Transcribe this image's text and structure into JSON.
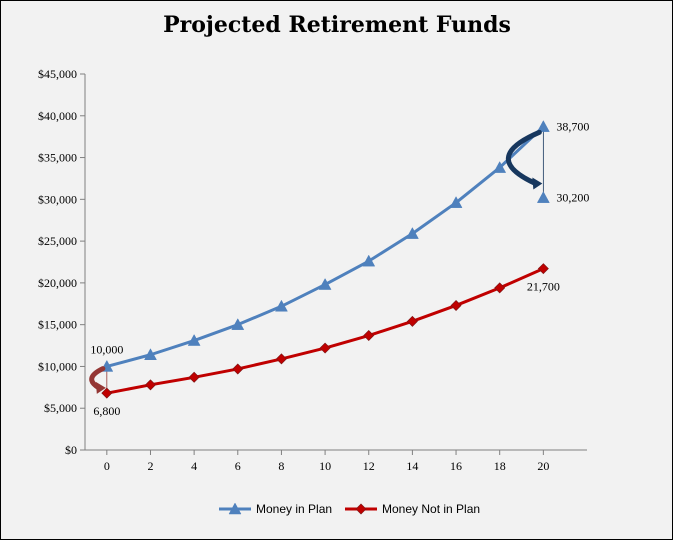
{
  "chart_data": {
    "type": "line",
    "title": "Projected Retirement Funds",
    "xlabel": "",
    "ylabel": "",
    "x": [
      0,
      2,
      4,
      6,
      8,
      10,
      12,
      14,
      16,
      18,
      20
    ],
    "xlim": [
      -1,
      22
    ],
    "ylim": [
      0,
      45000
    ],
    "x_ticks": [
      0,
      2,
      4,
      6,
      8,
      10,
      12,
      14,
      16,
      18,
      20
    ],
    "y_ticks": [
      0,
      5000,
      10000,
      15000,
      20000,
      25000,
      30000,
      35000,
      40000,
      45000
    ],
    "y_tick_labels": [
      "$0",
      "$5,000",
      "$10,000",
      "$15,000",
      "$20,000",
      "$25,000",
      "$30,000",
      "$35,000",
      "$40,000",
      "$45,000"
    ],
    "grid": false,
    "legend_position": "bottom",
    "series": [
      {
        "name": "Money in Plan",
        "color": "#4f81bd",
        "marker": "triangle",
        "values": [
          10000,
          11400,
          13100,
          15000,
          17200,
          19800,
          22600,
          25900,
          29600,
          33800,
          38700
        ]
      },
      {
        "name": "Money Not in Plan",
        "color": "#c00000",
        "marker": "diamond",
        "values": [
          6800,
          7800,
          8700,
          9700,
          10900,
          12200,
          13700,
          15400,
          17300,
          19400,
          21700
        ]
      }
    ],
    "extra_points": [
      {
        "x": 20,
        "y": 30200,
        "series": "Money in Plan",
        "marker": "triangle",
        "color": "#4f81bd"
      }
    ],
    "annotations": [
      {
        "text": "10,000",
        "x": 0,
        "y": 10000,
        "position": "above"
      },
      {
        "text": "6,800",
        "x": 0,
        "y": 6800,
        "position": "below"
      },
      {
        "text": "38,700",
        "x": 20,
        "y": 38700,
        "position": "right"
      },
      {
        "text": "30,200",
        "x": 20,
        "y": 30200,
        "position": "right"
      },
      {
        "text": "21,700",
        "x": 20,
        "y": 21700,
        "position": "below"
      }
    ],
    "arrows": [
      {
        "from_y": 10000,
        "to_y": 6800,
        "x": 0,
        "color": "#943634",
        "side": "left"
      },
      {
        "from_y": 38700,
        "to_y": 30200,
        "x": 20,
        "color": "#17375e",
        "side": "left"
      }
    ]
  }
}
